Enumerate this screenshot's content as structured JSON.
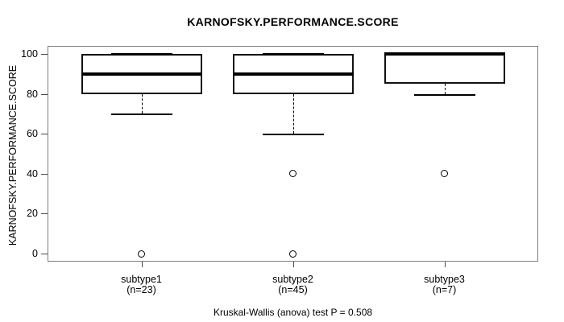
{
  "chart_data": {
    "type": "boxplot",
    "title": "KARNOFSKY.PERFORMANCE.SCORE",
    "ylabel": "KARNOFSKY.PERFORMANCE.SCORE",
    "xlabel": "",
    "caption": "Kruskal-Wallis (anova) test P = 0.508",
    "ylim": [
      -4,
      104
    ],
    "yticks": [
      0,
      20,
      40,
      60,
      80,
      100
    ],
    "grid": false,
    "legend": "none",
    "groups": [
      {
        "label": "subtype1",
        "sublabel": "(n=23)",
        "q1": 80,
        "median": 90,
        "q3": 100,
        "whisker_low": 70,
        "whisker_high": 100,
        "outliers": [
          0
        ]
      },
      {
        "label": "subtype2",
        "sublabel": "(n=45)",
        "q1": 80,
        "median": 90,
        "q3": 100,
        "whisker_low": 60,
        "whisker_high": 100,
        "outliers": [
          40,
          0
        ]
      },
      {
        "label": "subtype3",
        "sublabel": "(n=7)",
        "q1": 85,
        "median": 100,
        "q3": 100,
        "whisker_low": 80,
        "whisker_high": 100,
        "outliers": [
          40
        ]
      }
    ],
    "colors": {
      "background": "#ffffff",
      "frame": "#7d7d7d",
      "box_border": "#111111",
      "median": "#000000",
      "text": "#000000"
    }
  }
}
